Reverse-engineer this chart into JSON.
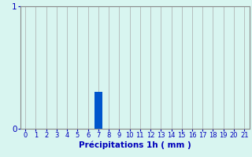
{
  "categories": [
    0,
    1,
    2,
    3,
    4,
    5,
    6,
    7,
    8,
    9,
    10,
    11,
    12,
    13,
    14,
    15,
    16,
    17,
    18,
    19,
    20,
    21
  ],
  "values": [
    0,
    0,
    0,
    0,
    0,
    0,
    0,
    0.3,
    0,
    0,
    0,
    0,
    0,
    0,
    0,
    0,
    0,
    0,
    0,
    0,
    0,
    0
  ],
  "bar_color": "#0055cc",
  "background_color": "#d8f5f0",
  "xlabel": "Précipitations 1h ( mm )",
  "xlabel_color": "#0000bb",
  "tick_color": "#0000bb",
  "grid_color": "#aaaaaa",
  "ylim": [
    0,
    1
  ],
  "xlim": [
    -0.5,
    21.5
  ],
  "yticks": [
    0,
    1
  ],
  "xtick_labels": [
    "0",
    "1",
    "2",
    "3",
    "4",
    "5",
    "6",
    "7",
    "8",
    "9",
    "10",
    "11",
    "12",
    "13",
    "14",
    "15",
    "16",
    "17",
    "18",
    "19",
    "20",
    "21"
  ],
  "bar_width": 0.75,
  "xlabel_fontsize": 7.5,
  "tick_fontsize": 6.0,
  "ytick_fontsize": 7.5
}
